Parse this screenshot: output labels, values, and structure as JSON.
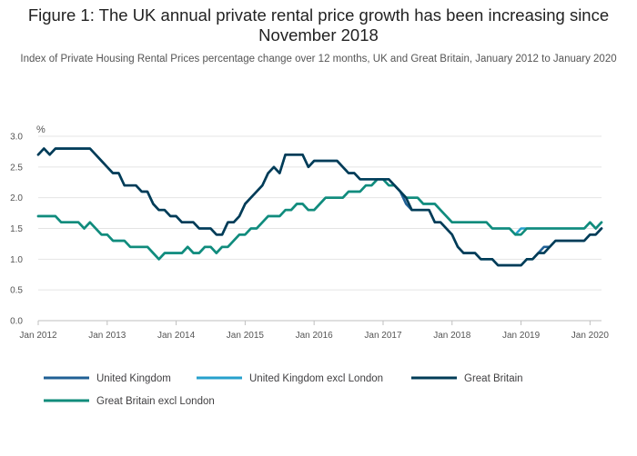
{
  "chart_data": {
    "type": "line",
    "title": "Figure 1: The UK annual private rental price growth has been increasing since November 2018",
    "subtitle": "Index of Private Housing Rental Prices percentage change over 12 months, UK and Great Britain, January 2012 to January 2020",
    "ylabel": "%",
    "xlabel": "",
    "ylim": [
      0,
      3.0
    ],
    "yticks": [
      "0.0",
      "0.5",
      "1.0",
      "1.5",
      "2.0",
      "2.5",
      "3.0"
    ],
    "xticks": [
      "Jan 2012",
      "Jan 2013",
      "Jan 2014",
      "Jan 2015",
      "Jan 2016",
      "Jan 2017",
      "Jan 2018",
      "Jan 2019",
      "Jan 2020"
    ],
    "grid": true,
    "legend_position": "bottom",
    "x_start": "Jan 2012",
    "x_end": "Jan 2020",
    "series": [
      {
        "name": "United Kingdom",
        "color": "#206095",
        "values": [
          2.7,
          2.8,
          2.7,
          2.8,
          2.8,
          2.8,
          2.8,
          2.8,
          2.8,
          2.8,
          2.7,
          2.6,
          2.5,
          2.4,
          2.4,
          2.2,
          2.2,
          2.2,
          2.1,
          2.1,
          1.9,
          1.8,
          1.8,
          1.7,
          1.7,
          1.6,
          1.6,
          1.6,
          1.5,
          1.5,
          1.5,
          1.4,
          1.4,
          1.6,
          1.6,
          1.7,
          1.9,
          2.0,
          2.1,
          2.2,
          2.4,
          2.5,
          2.4,
          2.7,
          2.7,
          2.7,
          2.7,
          2.5,
          2.6,
          2.6,
          2.6,
          2.6,
          2.6,
          2.5,
          2.4,
          2.4,
          2.3,
          2.3,
          2.3,
          2.3,
          2.3,
          2.3,
          2.2,
          2.1,
          1.9,
          1.8,
          1.8,
          1.8,
          1.8,
          1.6,
          1.6,
          1.5,
          1.4,
          1.2,
          1.1,
          1.1,
          1.1,
          1.0,
          1.0,
          1.0,
          0.9,
          0.9,
          0.9,
          0.9,
          0.9,
          1.0,
          1.0,
          1.1,
          1.2,
          1.2,
          1.3,
          1.3,
          1.3,
          1.3,
          1.3,
          1.3,
          1.4,
          1.4,
          1.5
        ]
      },
      {
        "name": "United Kingdom excl London",
        "color": "#27a0cc",
        "values": [
          1.7,
          1.7,
          1.7,
          1.7,
          1.6,
          1.6,
          1.6,
          1.6,
          1.5,
          1.6,
          1.5,
          1.4,
          1.4,
          1.3,
          1.3,
          1.3,
          1.2,
          1.2,
          1.2,
          1.2,
          1.1,
          1.0,
          1.1,
          1.1,
          1.1,
          1.1,
          1.2,
          1.1,
          1.1,
          1.2,
          1.2,
          1.1,
          1.2,
          1.2,
          1.3,
          1.4,
          1.4,
          1.5,
          1.5,
          1.6,
          1.7,
          1.7,
          1.7,
          1.8,
          1.8,
          1.9,
          1.9,
          1.8,
          1.8,
          1.9,
          2.0,
          2.0,
          2.0,
          2.0,
          2.1,
          2.1,
          2.1,
          2.2,
          2.2,
          2.3,
          2.3,
          2.2,
          2.2,
          2.1,
          2.0,
          2.0,
          2.0,
          1.9,
          1.9,
          1.9,
          1.8,
          1.7,
          1.6,
          1.6,
          1.6,
          1.6,
          1.6,
          1.6,
          1.6,
          1.5,
          1.5,
          1.5,
          1.5,
          1.4,
          1.5,
          1.5,
          1.5,
          1.5,
          1.5,
          1.5,
          1.5,
          1.5,
          1.5,
          1.5,
          1.5,
          1.5,
          1.6,
          1.5,
          1.6
        ]
      },
      {
        "name": "Great Britain",
        "color": "#003c57",
        "values": [
          2.7,
          2.8,
          2.7,
          2.8,
          2.8,
          2.8,
          2.8,
          2.8,
          2.8,
          2.8,
          2.7,
          2.6,
          2.5,
          2.4,
          2.4,
          2.2,
          2.2,
          2.2,
          2.1,
          2.1,
          1.9,
          1.8,
          1.8,
          1.7,
          1.7,
          1.6,
          1.6,
          1.6,
          1.5,
          1.5,
          1.5,
          1.4,
          1.4,
          1.6,
          1.6,
          1.7,
          1.9,
          2.0,
          2.1,
          2.2,
          2.4,
          2.5,
          2.4,
          2.7,
          2.7,
          2.7,
          2.7,
          2.5,
          2.6,
          2.6,
          2.6,
          2.6,
          2.6,
          2.5,
          2.4,
          2.4,
          2.3,
          2.3,
          2.3,
          2.3,
          2.3,
          2.3,
          2.2,
          2.1,
          2.0,
          1.8,
          1.8,
          1.8,
          1.8,
          1.6,
          1.6,
          1.5,
          1.4,
          1.2,
          1.1,
          1.1,
          1.1,
          1.0,
          1.0,
          1.0,
          0.9,
          0.9,
          0.9,
          0.9,
          0.9,
          1.0,
          1.0,
          1.1,
          1.1,
          1.2,
          1.3,
          1.3,
          1.3,
          1.3,
          1.3,
          1.3,
          1.4,
          1.4,
          1.5
        ]
      },
      {
        "name": "Great Britain excl London",
        "color": "#118c7b",
        "values": [
          1.7,
          1.7,
          1.7,
          1.7,
          1.6,
          1.6,
          1.6,
          1.6,
          1.5,
          1.6,
          1.5,
          1.4,
          1.4,
          1.3,
          1.3,
          1.3,
          1.2,
          1.2,
          1.2,
          1.2,
          1.1,
          1.0,
          1.1,
          1.1,
          1.1,
          1.1,
          1.2,
          1.1,
          1.1,
          1.2,
          1.2,
          1.1,
          1.2,
          1.2,
          1.3,
          1.4,
          1.4,
          1.5,
          1.5,
          1.6,
          1.7,
          1.7,
          1.7,
          1.8,
          1.8,
          1.9,
          1.9,
          1.8,
          1.8,
          1.9,
          2.0,
          2.0,
          2.0,
          2.0,
          2.1,
          2.1,
          2.1,
          2.2,
          2.2,
          2.3,
          2.3,
          2.2,
          2.2,
          2.1,
          2.0,
          2.0,
          2.0,
          1.9,
          1.9,
          1.9,
          1.8,
          1.7,
          1.6,
          1.6,
          1.6,
          1.6,
          1.6,
          1.6,
          1.6,
          1.5,
          1.5,
          1.5,
          1.5,
          1.4,
          1.4,
          1.5,
          1.5,
          1.5,
          1.5,
          1.5,
          1.5,
          1.5,
          1.5,
          1.5,
          1.5,
          1.5,
          1.6,
          1.5,
          1.6
        ]
      }
    ]
  }
}
